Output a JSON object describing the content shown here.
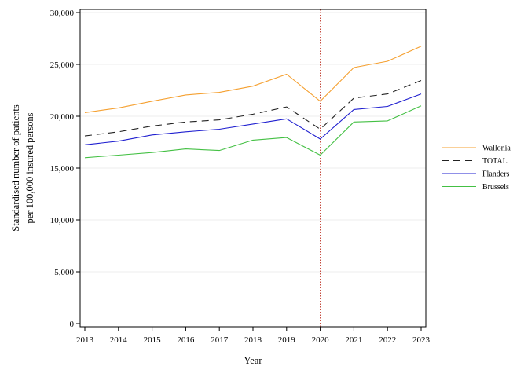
{
  "chart_data": {
    "type": "line",
    "title": "",
    "xlabel": "Year",
    "ylabel_lines": [
      "Standardised number of patients",
      "per 100,000 insured persons"
    ],
    "x": [
      2013,
      2014,
      2015,
      2016,
      2017,
      2018,
      2019,
      2020,
      2021,
      2022,
      2023
    ],
    "x_tick_labels": [
      "2013",
      "2014",
      "2015",
      "2016",
      "2017",
      "2018",
      "2019",
      "2020",
      "2021",
      "2022",
      "2023"
    ],
    "ylim": [
      0,
      30000
    ],
    "y_ticks": [
      0,
      5000,
      10000,
      15000,
      20000,
      25000,
      30000
    ],
    "y_tick_labels": [
      "0",
      "5,000",
      "10,000",
      "15,000",
      "20,000",
      "25,000",
      "30,000"
    ],
    "grid": "horizontal light",
    "reference_line": {
      "x": 2020,
      "color": "#c0392b",
      "style": "dotted"
    },
    "legend_position": "right",
    "series": [
      {
        "name": "Wallonia",
        "color": "#f5a030",
        "dash": "",
        "values": [
          20350,
          20800,
          21450,
          22050,
          22300,
          22900,
          24050,
          21450,
          24700,
          25300,
          26750
        ]
      },
      {
        "name": "TOTAL",
        "color": "#222222",
        "dash": "9,6",
        "values": [
          18100,
          18500,
          19050,
          19450,
          19650,
          20200,
          20900,
          18750,
          21750,
          22150,
          23450
        ]
      },
      {
        "name": "Flanders",
        "color": "#2020d0",
        "dash": "",
        "values": [
          17250,
          17600,
          18200,
          18500,
          18750,
          19250,
          19750,
          17800,
          20650,
          20950,
          22150
        ]
      },
      {
        "name": "Brussels",
        "color": "#44c044",
        "dash": "",
        "values": [
          16000,
          16250,
          16500,
          16850,
          16700,
          17700,
          17950,
          16250,
          19450,
          19550,
          21000
        ]
      }
    ]
  }
}
